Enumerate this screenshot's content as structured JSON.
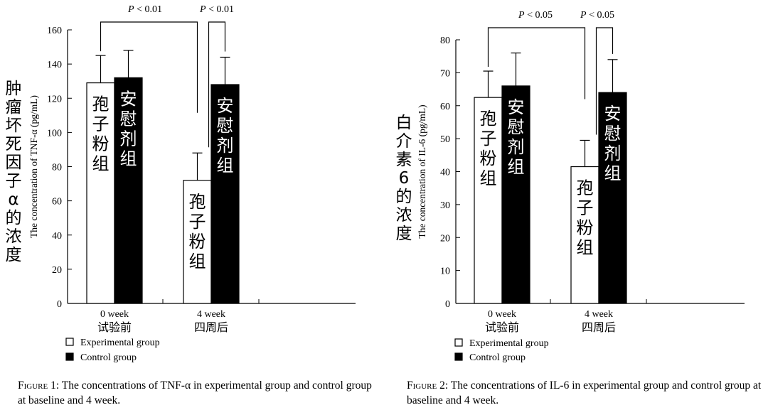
{
  "chart_data": [
    {
      "type": "bar",
      "title_cjk": "肿瘤坏死因子α的浓度",
      "ylabel": "The concentration of TNF-α (pg/mL)",
      "ylim": [
        0,
        160
      ],
      "yticks": [
        0,
        20,
        40,
        60,
        80,
        100,
        120,
        140,
        160
      ],
      "categories": [
        {
          "en": "0 week",
          "cn": "试验前"
        },
        {
          "en": "4 week",
          "cn": "四周后"
        }
      ],
      "series": [
        {
          "name": "Experimental group",
          "bar_label": "孢子粉组",
          "color": "#ffffff",
          "values": [
            129,
            72
          ],
          "errors": [
            16,
            16
          ]
        },
        {
          "name": "Control group",
          "bar_label": "安慰剂组",
          "color": "#000000",
          "values": [
            132,
            128
          ],
          "errors": [
            16,
            16
          ]
        }
      ],
      "annotations": [
        "P < 0.01",
        "P < 0.01"
      ],
      "caption": {
        "figure_label": "Figure 1:",
        "text": "The concentrations of TNF-α in experimental group and control group at baseline and 4 week."
      }
    },
    {
      "type": "bar",
      "title_cjk": "白介素6的浓度",
      "ylabel": "The concentration of IL-6 (pg/mL)",
      "ylim": [
        0,
        80
      ],
      "yticks": [
        0,
        10,
        20,
        30,
        40,
        50,
        60,
        70,
        80
      ],
      "categories": [
        {
          "en": "0 week",
          "cn": "试验前"
        },
        {
          "en": "4 week",
          "cn": "四周后"
        }
      ],
      "series": [
        {
          "name": "Experimental group",
          "bar_label": "孢子粉组",
          "color": "#ffffff",
          "values": [
            62.5,
            41.5
          ],
          "errors": [
            8,
            8
          ]
        },
        {
          "name": "Control group",
          "bar_label": "安慰剂组",
          "color": "#000000",
          "values": [
            66,
            64
          ],
          "errors": [
            10,
            10
          ]
        }
      ],
      "annotations": [
        "P < 0.05",
        "P < 0.05"
      ],
      "caption": {
        "figure_label": "Figure 2:",
        "text": "The concentrations of IL-6 in experimental group and control group at baseline and 4 week."
      }
    }
  ]
}
